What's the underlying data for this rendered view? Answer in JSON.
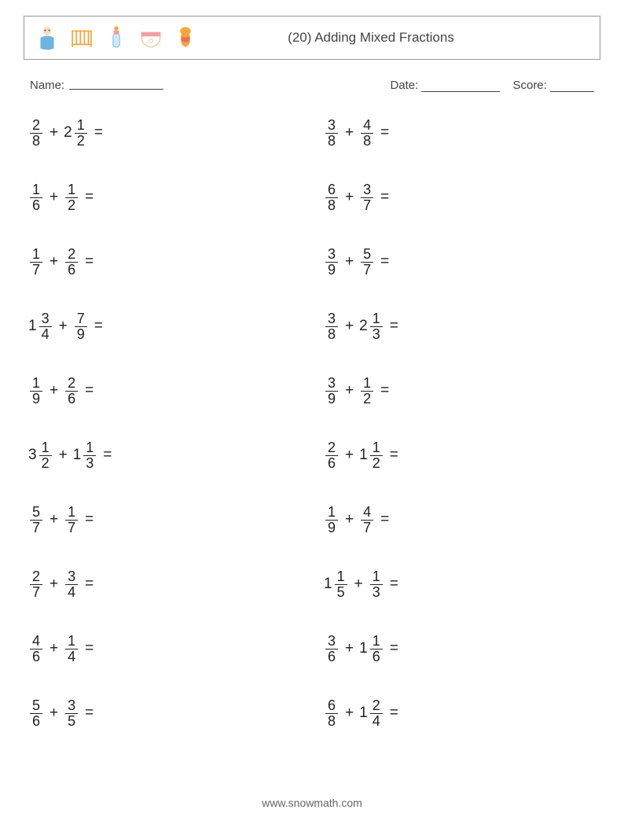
{
  "header": {
    "title": "(20) Adding Mixed Fractions",
    "icons": [
      "baby-icon",
      "crib-icon",
      "bottle-icon",
      "diaper-icon",
      "bib-icon"
    ]
  },
  "meta": {
    "name_label": "Name:",
    "date_label": "Date:",
    "score_label": "Score:"
  },
  "colors": {
    "page_bg": "#ffffff",
    "text": "#333333",
    "border": "#999999",
    "icon_orange": "#f4a638",
    "icon_blue": "#6fb3e0",
    "icon_pink": "#f29ca6",
    "icon_red": "#e86a6a",
    "icon_tan": "#e8c89a"
  },
  "problems": {
    "left": [
      {
        "a_whole": "",
        "a_num": "2",
        "a_den": "8",
        "b_whole": "2",
        "b_num": "1",
        "b_den": "2"
      },
      {
        "a_whole": "",
        "a_num": "1",
        "a_den": "6",
        "b_whole": "",
        "b_num": "1",
        "b_den": "2"
      },
      {
        "a_whole": "",
        "a_num": "1",
        "a_den": "7",
        "b_whole": "",
        "b_num": "2",
        "b_den": "6"
      },
      {
        "a_whole": "1",
        "a_num": "3",
        "a_den": "4",
        "b_whole": "",
        "b_num": "7",
        "b_den": "9"
      },
      {
        "a_whole": "",
        "a_num": "1",
        "a_den": "9",
        "b_whole": "",
        "b_num": "2",
        "b_den": "6"
      },
      {
        "a_whole": "3",
        "a_num": "1",
        "a_den": "2",
        "b_whole": "1",
        "b_num": "1",
        "b_den": "3"
      },
      {
        "a_whole": "",
        "a_num": "5",
        "a_den": "7",
        "b_whole": "",
        "b_num": "1",
        "b_den": "7"
      },
      {
        "a_whole": "",
        "a_num": "2",
        "a_den": "7",
        "b_whole": "",
        "b_num": "3",
        "b_den": "4"
      },
      {
        "a_whole": "",
        "a_num": "4",
        "a_den": "6",
        "b_whole": "",
        "b_num": "1",
        "b_den": "4"
      },
      {
        "a_whole": "",
        "a_num": "5",
        "a_den": "6",
        "b_whole": "",
        "b_num": "3",
        "b_den": "5"
      }
    ],
    "right": [
      {
        "a_whole": "",
        "a_num": "3",
        "a_den": "8",
        "b_whole": "",
        "b_num": "4",
        "b_den": "8"
      },
      {
        "a_whole": "",
        "a_num": "6",
        "a_den": "8",
        "b_whole": "",
        "b_num": "3",
        "b_den": "7"
      },
      {
        "a_whole": "",
        "a_num": "3",
        "a_den": "9",
        "b_whole": "",
        "b_num": "5",
        "b_den": "7"
      },
      {
        "a_whole": "",
        "a_num": "3",
        "a_den": "8",
        "b_whole": "2",
        "b_num": "1",
        "b_den": "3"
      },
      {
        "a_whole": "",
        "a_num": "3",
        "a_den": "9",
        "b_whole": "",
        "b_num": "1",
        "b_den": "2"
      },
      {
        "a_whole": "",
        "a_num": "2",
        "a_den": "6",
        "b_whole": "1",
        "b_num": "1",
        "b_den": "2"
      },
      {
        "a_whole": "",
        "a_num": "1",
        "a_den": "9",
        "b_whole": "",
        "b_num": "4",
        "b_den": "7"
      },
      {
        "a_whole": "1",
        "a_num": "1",
        "a_den": "5",
        "b_whole": "",
        "b_num": "1",
        "b_den": "3"
      },
      {
        "a_whole": "",
        "a_num": "3",
        "a_den": "6",
        "b_whole": "1",
        "b_num": "1",
        "b_den": "6"
      },
      {
        "a_whole": "",
        "a_num": "6",
        "a_den": "8",
        "b_whole": "1",
        "b_num": "2",
        "b_den": "4"
      }
    ]
  },
  "operator": "+",
  "equals": "=",
  "footer": "www.snowmath.com"
}
